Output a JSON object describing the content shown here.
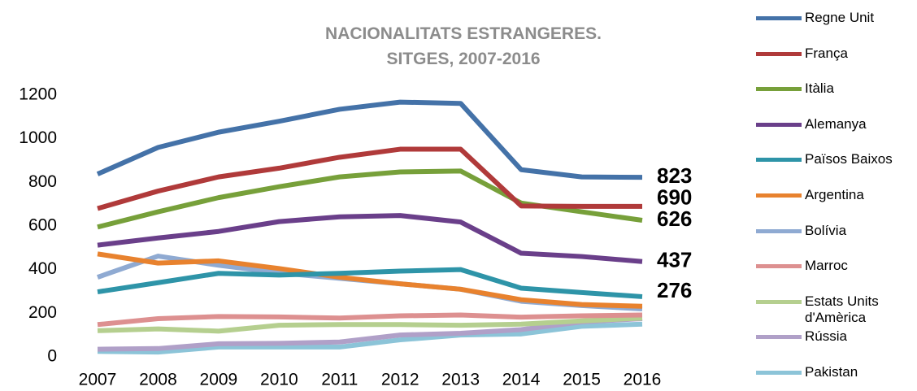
{
  "chart_data": {
    "type": "line",
    "title": "NACIONALITATS ESTRANGERES. SITGES, 2007-2016",
    "x": [
      2007,
      2008,
      2009,
      2010,
      2011,
      2012,
      2013,
      2014,
      2015,
      2016
    ],
    "xlim": [
      2007,
      2016
    ],
    "ylim": [
      0,
      1200
    ],
    "yticks": [
      0,
      200,
      400,
      600,
      800,
      1000,
      1200
    ],
    "grid": false,
    "legend": "right",
    "series": [
      {
        "name": "Regne Unit",
        "color": "#4472a8",
        "values": [
          838,
          960,
          1030,
          1080,
          1135,
          1168,
          1162,
          858,
          825,
          823
        ]
      },
      {
        "name": "França",
        "color": "#b03a3a",
        "values": [
          680,
          760,
          825,
          865,
          915,
          952,
          952,
          692,
          690,
          690
        ]
      },
      {
        "name": "Itàlia",
        "color": "#77a03a",
        "values": [
          595,
          665,
          730,
          780,
          825,
          848,
          852,
          705,
          665,
          626
        ]
      },
      {
        "name": "Alemanya",
        "color": "#6a3f8a",
        "values": [
          512,
          545,
          575,
          620,
          642,
          648,
          618,
          475,
          460,
          437
        ]
      },
      {
        "name": "Països Baixos",
        "color": "#2e94a8",
        "values": [
          298,
          340,
          383,
          375,
          383,
          393,
          400,
          315,
          295,
          276
        ]
      },
      {
        "name": "Argentina",
        "color": "#e8822e",
        "values": [
          472,
          430,
          440,
          405,
          365,
          335,
          310,
          262,
          240,
          232
        ]
      },
      {
        "name": "Bolívia",
        "color": "#8faad2",
        "values": [
          365,
          462,
          420,
          385,
          360,
          335,
          310,
          255,
          235,
          220
        ]
      },
      {
        "name": "Marroc",
        "color": "#dd9090",
        "values": [
          148,
          175,
          185,
          183,
          178,
          188,
          192,
          182,
          188,
          192
        ]
      },
      {
        "name": "Estats Units d'Amèrica",
        "color": "#b5cf8f",
        "values": [
          120,
          128,
          118,
          145,
          148,
          148,
          145,
          150,
          165,
          178
        ]
      },
      {
        "name": "Rússia",
        "color": "#b0a0c8",
        "values": [
          35,
          38,
          60,
          62,
          68,
          100,
          108,
          125,
          160,
          175
        ]
      },
      {
        "name": "Pakistan",
        "color": "#8cc4d8",
        "values": [
          25,
          22,
          45,
          45,
          45,
          78,
          100,
          105,
          140,
          150
        ]
      }
    ]
  }
}
